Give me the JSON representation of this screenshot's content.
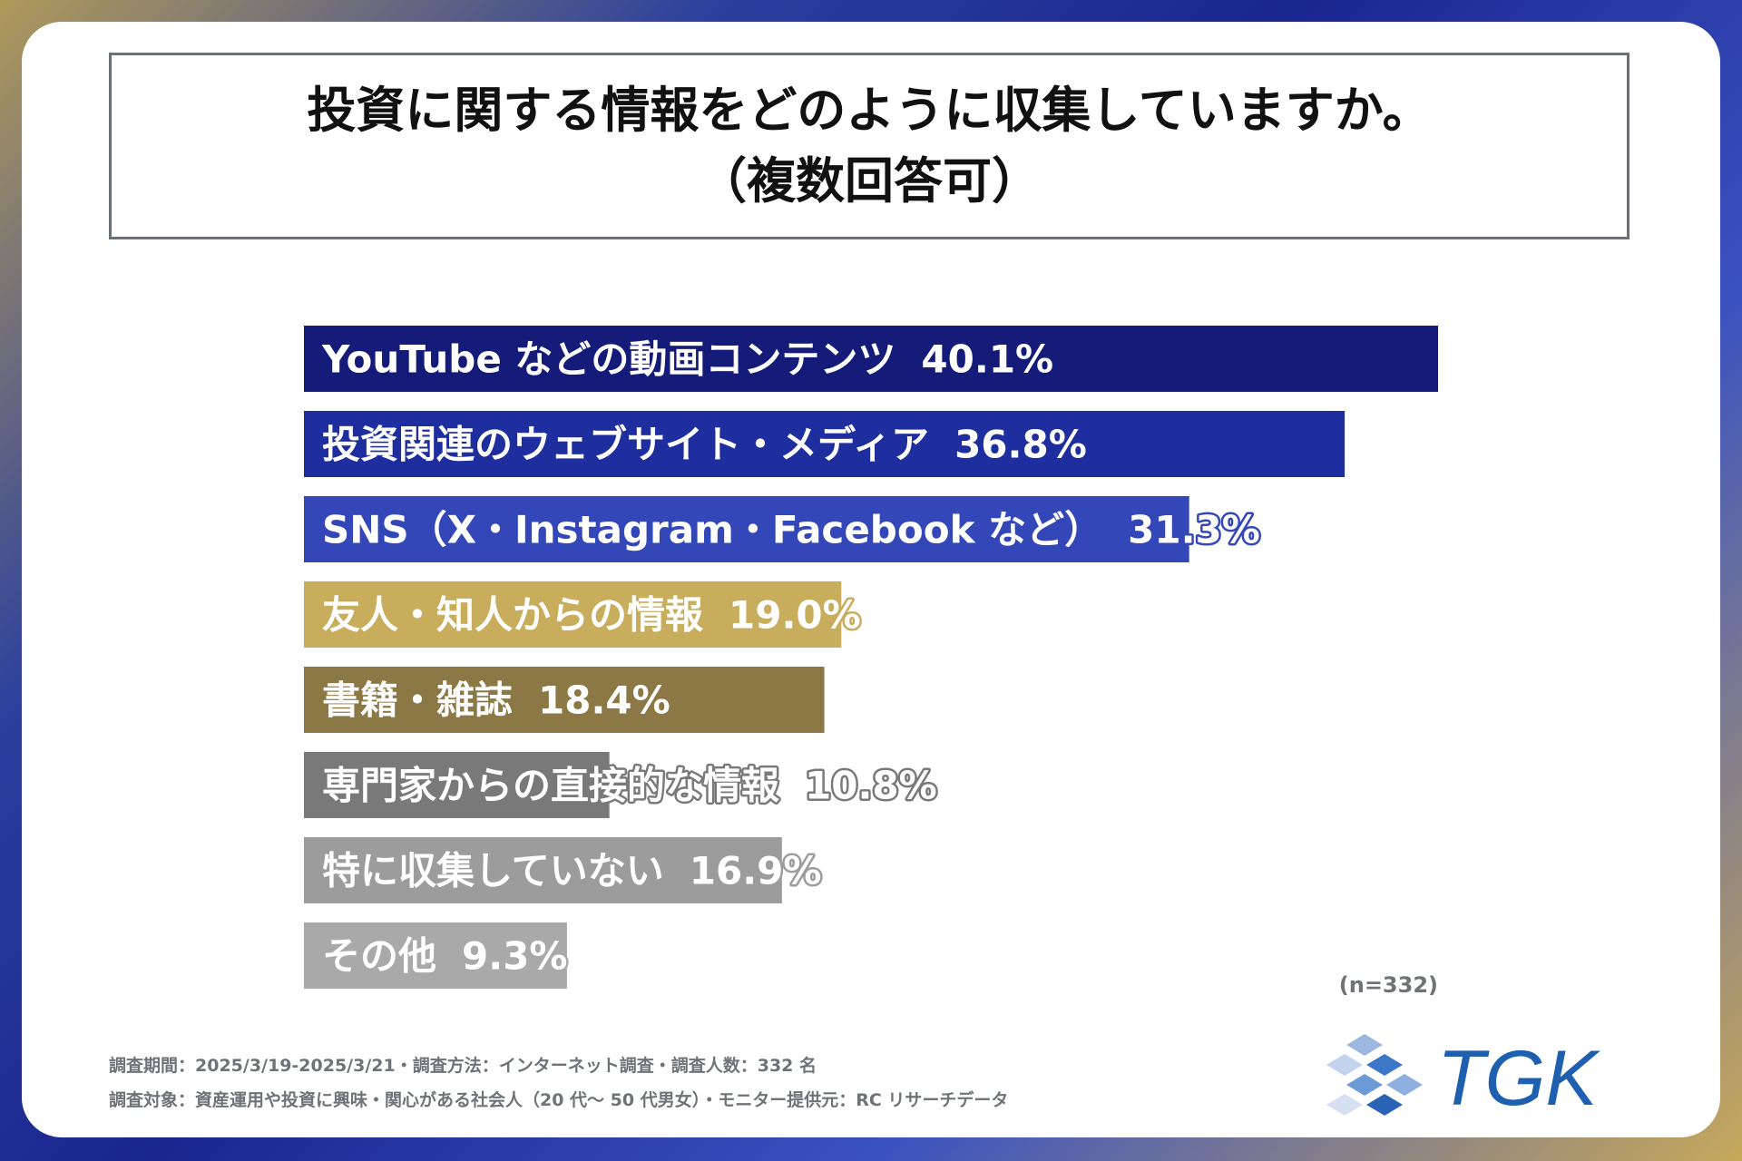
{
  "title": {
    "line1": "投資に関する情報をどのように収集していますか。",
    "line2": "（複数回答可）"
  },
  "chart_data": {
    "type": "bar",
    "orientation": "horizontal",
    "categories": [
      "YouTube などの動画コンテンツ",
      "投資関連のウェブサイト・メディア",
      "SNS（X・Instagram・Facebook など）",
      "友人・知人からの情報",
      "書籍・雑誌",
      "専門家からの直接的な情報",
      "特に収集していない",
      "その他"
    ],
    "values": [
      40.1,
      36.8,
      31.3,
      19.0,
      18.4,
      10.8,
      16.9,
      9.3
    ],
    "value_labels": [
      "40.1%",
      "36.8%",
      "31.3%",
      "19.0%",
      "18.4%",
      "10.8%",
      "16.9%",
      "9.3%"
    ],
    "colors": [
      "#141b78",
      "#1e2e9e",
      "#3347b8",
      "#c8ad5c",
      "#8c7845",
      "#797979",
      "#9c9c9c",
      "#a9a9a9"
    ],
    "xlim": [
      0,
      40.1
    ],
    "sample_note": "(n=332)"
  },
  "footer": {
    "line1": "調査期間：2025/3/19-2025/3/21・調査方法：インターネット調査・調査人数：332 名",
    "line2": "調査対象：資産運用や投資に興味・関心がある社会人（20 代〜 50 代男女）・モニター提供元：RC リサーチデータ"
  },
  "logo": {
    "text": "TGK",
    "color": "#1f5fb0",
    "icon": "cube-logo-icon"
  }
}
